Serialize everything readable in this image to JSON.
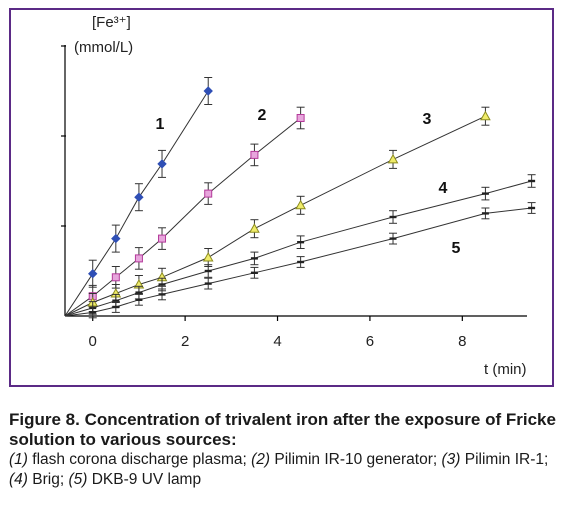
{
  "chart_data": {
    "type": "scatter",
    "ylabel_line1": "[Fe³⁺]",
    "ylabel_line2": "(mmol/L)",
    "xlabel": "t (min)",
    "xlim": [
      -0.6,
      9.6
    ],
    "x_ticks": [
      0,
      2,
      4,
      6,
      8
    ],
    "y_ticks_count": 3,
    "series": [
      {
        "name": "1",
        "color": "#2f4fb5",
        "marker": "diamond",
        "error": 0.15,
        "points": [
          [
            -0.6,
            0.0
          ],
          [
            0.0,
            0.47
          ],
          [
            0.5,
            0.86
          ],
          [
            1.0,
            1.32
          ],
          [
            1.5,
            1.69
          ],
          [
            2.5,
            2.5
          ]
        ]
      },
      {
        "name": "2",
        "color": "#b43a9a",
        "marker": "square",
        "error": 0.12,
        "points": [
          [
            -0.6,
            0.0
          ],
          [
            0.0,
            0.22
          ],
          [
            0.5,
            0.43
          ],
          [
            1.0,
            0.64
          ],
          [
            1.5,
            0.86
          ],
          [
            2.5,
            1.36
          ],
          [
            3.5,
            1.79
          ],
          [
            4.5,
            2.2
          ]
        ]
      },
      {
        "name": "3",
        "color": "#8c8c1f",
        "marker": "triangle",
        "error": 0.1,
        "points": [
          [
            -0.6,
            0.0
          ],
          [
            0.0,
            0.15
          ],
          [
            0.5,
            0.25
          ],
          [
            1.0,
            0.35
          ],
          [
            1.5,
            0.43
          ],
          [
            2.5,
            0.65
          ],
          [
            3.5,
            0.97
          ],
          [
            4.5,
            1.23
          ],
          [
            6.5,
            1.74
          ],
          [
            8.5,
            2.22
          ]
        ]
      },
      {
        "name": "4",
        "color": "#222222",
        "marker": "tick",
        "error": 0.07,
        "points": [
          [
            -0.6,
            0.0
          ],
          [
            0.0,
            0.09
          ],
          [
            0.5,
            0.17
          ],
          [
            1.0,
            0.26
          ],
          [
            1.5,
            0.35
          ],
          [
            2.5,
            0.5
          ],
          [
            3.5,
            0.64
          ],
          [
            4.5,
            0.82
          ],
          [
            6.5,
            1.1
          ],
          [
            8.5,
            1.36
          ],
          [
            9.5,
            1.5
          ]
        ]
      },
      {
        "name": "5",
        "color": "#222222",
        "marker": "tick",
        "error": 0.06,
        "points": [
          [
            -0.6,
            0.0
          ],
          [
            0.0,
            0.04
          ],
          [
            0.5,
            0.1
          ],
          [
            1.0,
            0.18
          ],
          [
            1.5,
            0.24
          ],
          [
            2.5,
            0.36
          ],
          [
            3.5,
            0.48
          ],
          [
            4.5,
            0.6
          ],
          [
            6.5,
            0.86
          ],
          [
            8.5,
            1.14
          ],
          [
            9.5,
            1.2
          ]
        ]
      }
    ]
  },
  "caption": {
    "title": "Figure 8. Concentration of trivalent iron after the exposure of Fricke solution to various sources:",
    "items": [
      {
        "num": "(1)",
        "text": " flash corona discharge plasma; "
      },
      {
        "num": "(2)",
        "text": " Pilimin IR-10 generator; "
      },
      {
        "num": "(3)",
        "text": " Pilimin IR-1; "
      },
      {
        "num": "(4)",
        "text": " Brig; "
      },
      {
        "num": "(5)",
        "text": " DKB-9 UV lamp"
      }
    ]
  }
}
